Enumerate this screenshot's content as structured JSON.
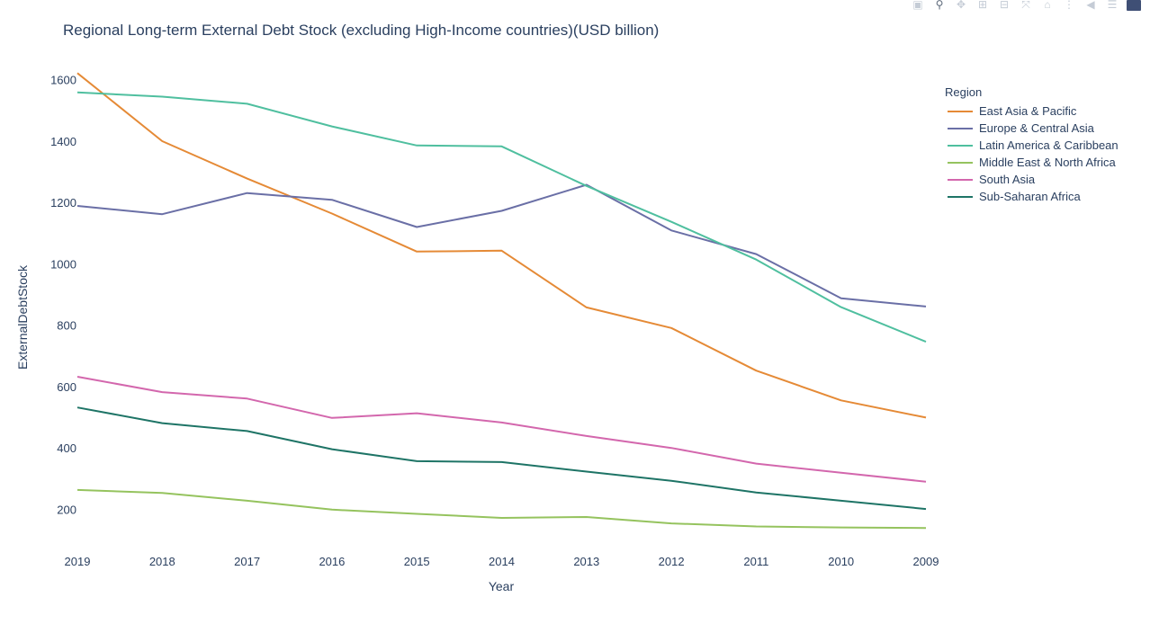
{
  "modebar": {
    "buttons": [
      {
        "name": "camera-icon",
        "glyph": "▣"
      },
      {
        "name": "zoom-icon",
        "glyph": "⚲"
      },
      {
        "name": "pan-icon",
        "glyph": "✥"
      },
      {
        "name": "zoom-in-icon",
        "glyph": "⊞"
      },
      {
        "name": "zoom-out-icon",
        "glyph": "⊟"
      },
      {
        "name": "autoscale-icon",
        "glyph": "⤧"
      },
      {
        "name": "home-icon",
        "glyph": "⌂"
      },
      {
        "name": "spike-lines-icon",
        "glyph": "⋮"
      },
      {
        "name": "hover-closest-icon",
        "glyph": "◀"
      },
      {
        "name": "hover-compare-icon",
        "glyph": "☰"
      }
    ]
  },
  "chart_data": {
    "type": "line",
    "title": "Regional Long-term External Debt Stock (excluding High-Income countries)(USD billion)",
    "xlabel": "Year",
    "ylabel": "ExternalDebtStock",
    "legend_title": "Region",
    "legend_position": "top-right",
    "x": [
      "2019",
      "2018",
      "2017",
      "2016",
      "2015",
      "2014",
      "2013",
      "2012",
      "2011",
      "2010",
      "2009"
    ],
    "ylim": [
      85,
      1700
    ],
    "yticks": [
      200,
      400,
      600,
      800,
      1000,
      1200,
      1400,
      1600
    ],
    "grid": false,
    "series": [
      {
        "name": "East Asia & Pacific",
        "color": "#e58a36",
        "values": [
          1623,
          1401,
          1279,
          1165,
          1041,
          1044,
          859,
          792,
          653,
          556,
          500
        ]
      },
      {
        "name": "Europe & Central Asia",
        "color": "#6a6fa6",
        "values": [
          1190,
          1163,
          1232,
          1210,
          1121,
          1174,
          1259,
          1110,
          1033,
          889,
          862
        ]
      },
      {
        "name": "Latin America & Caribbean",
        "color": "#4fbf9f",
        "values": [
          1560,
          1546,
          1523,
          1449,
          1387,
          1384,
          1255,
          1138,
          1015,
          860,
          747
        ]
      },
      {
        "name": "Middle East & North Africa",
        "color": "#95c35e",
        "values": [
          264,
          254,
          229,
          200,
          186,
          173,
          176,
          155,
          145,
          142,
          140
        ]
      },
      {
        "name": "South Asia",
        "color": "#d367ad",
        "values": [
          633,
          583,
          562,
          499,
          514,
          484,
          440,
          401,
          350,
          320,
          291
        ]
      },
      {
        "name": "Sub-Saharan Africa",
        "color": "#1e7466",
        "values": [
          533,
          482,
          456,
          397,
          358,
          355,
          324,
          294,
          256,
          229,
          202
        ]
      }
    ]
  }
}
